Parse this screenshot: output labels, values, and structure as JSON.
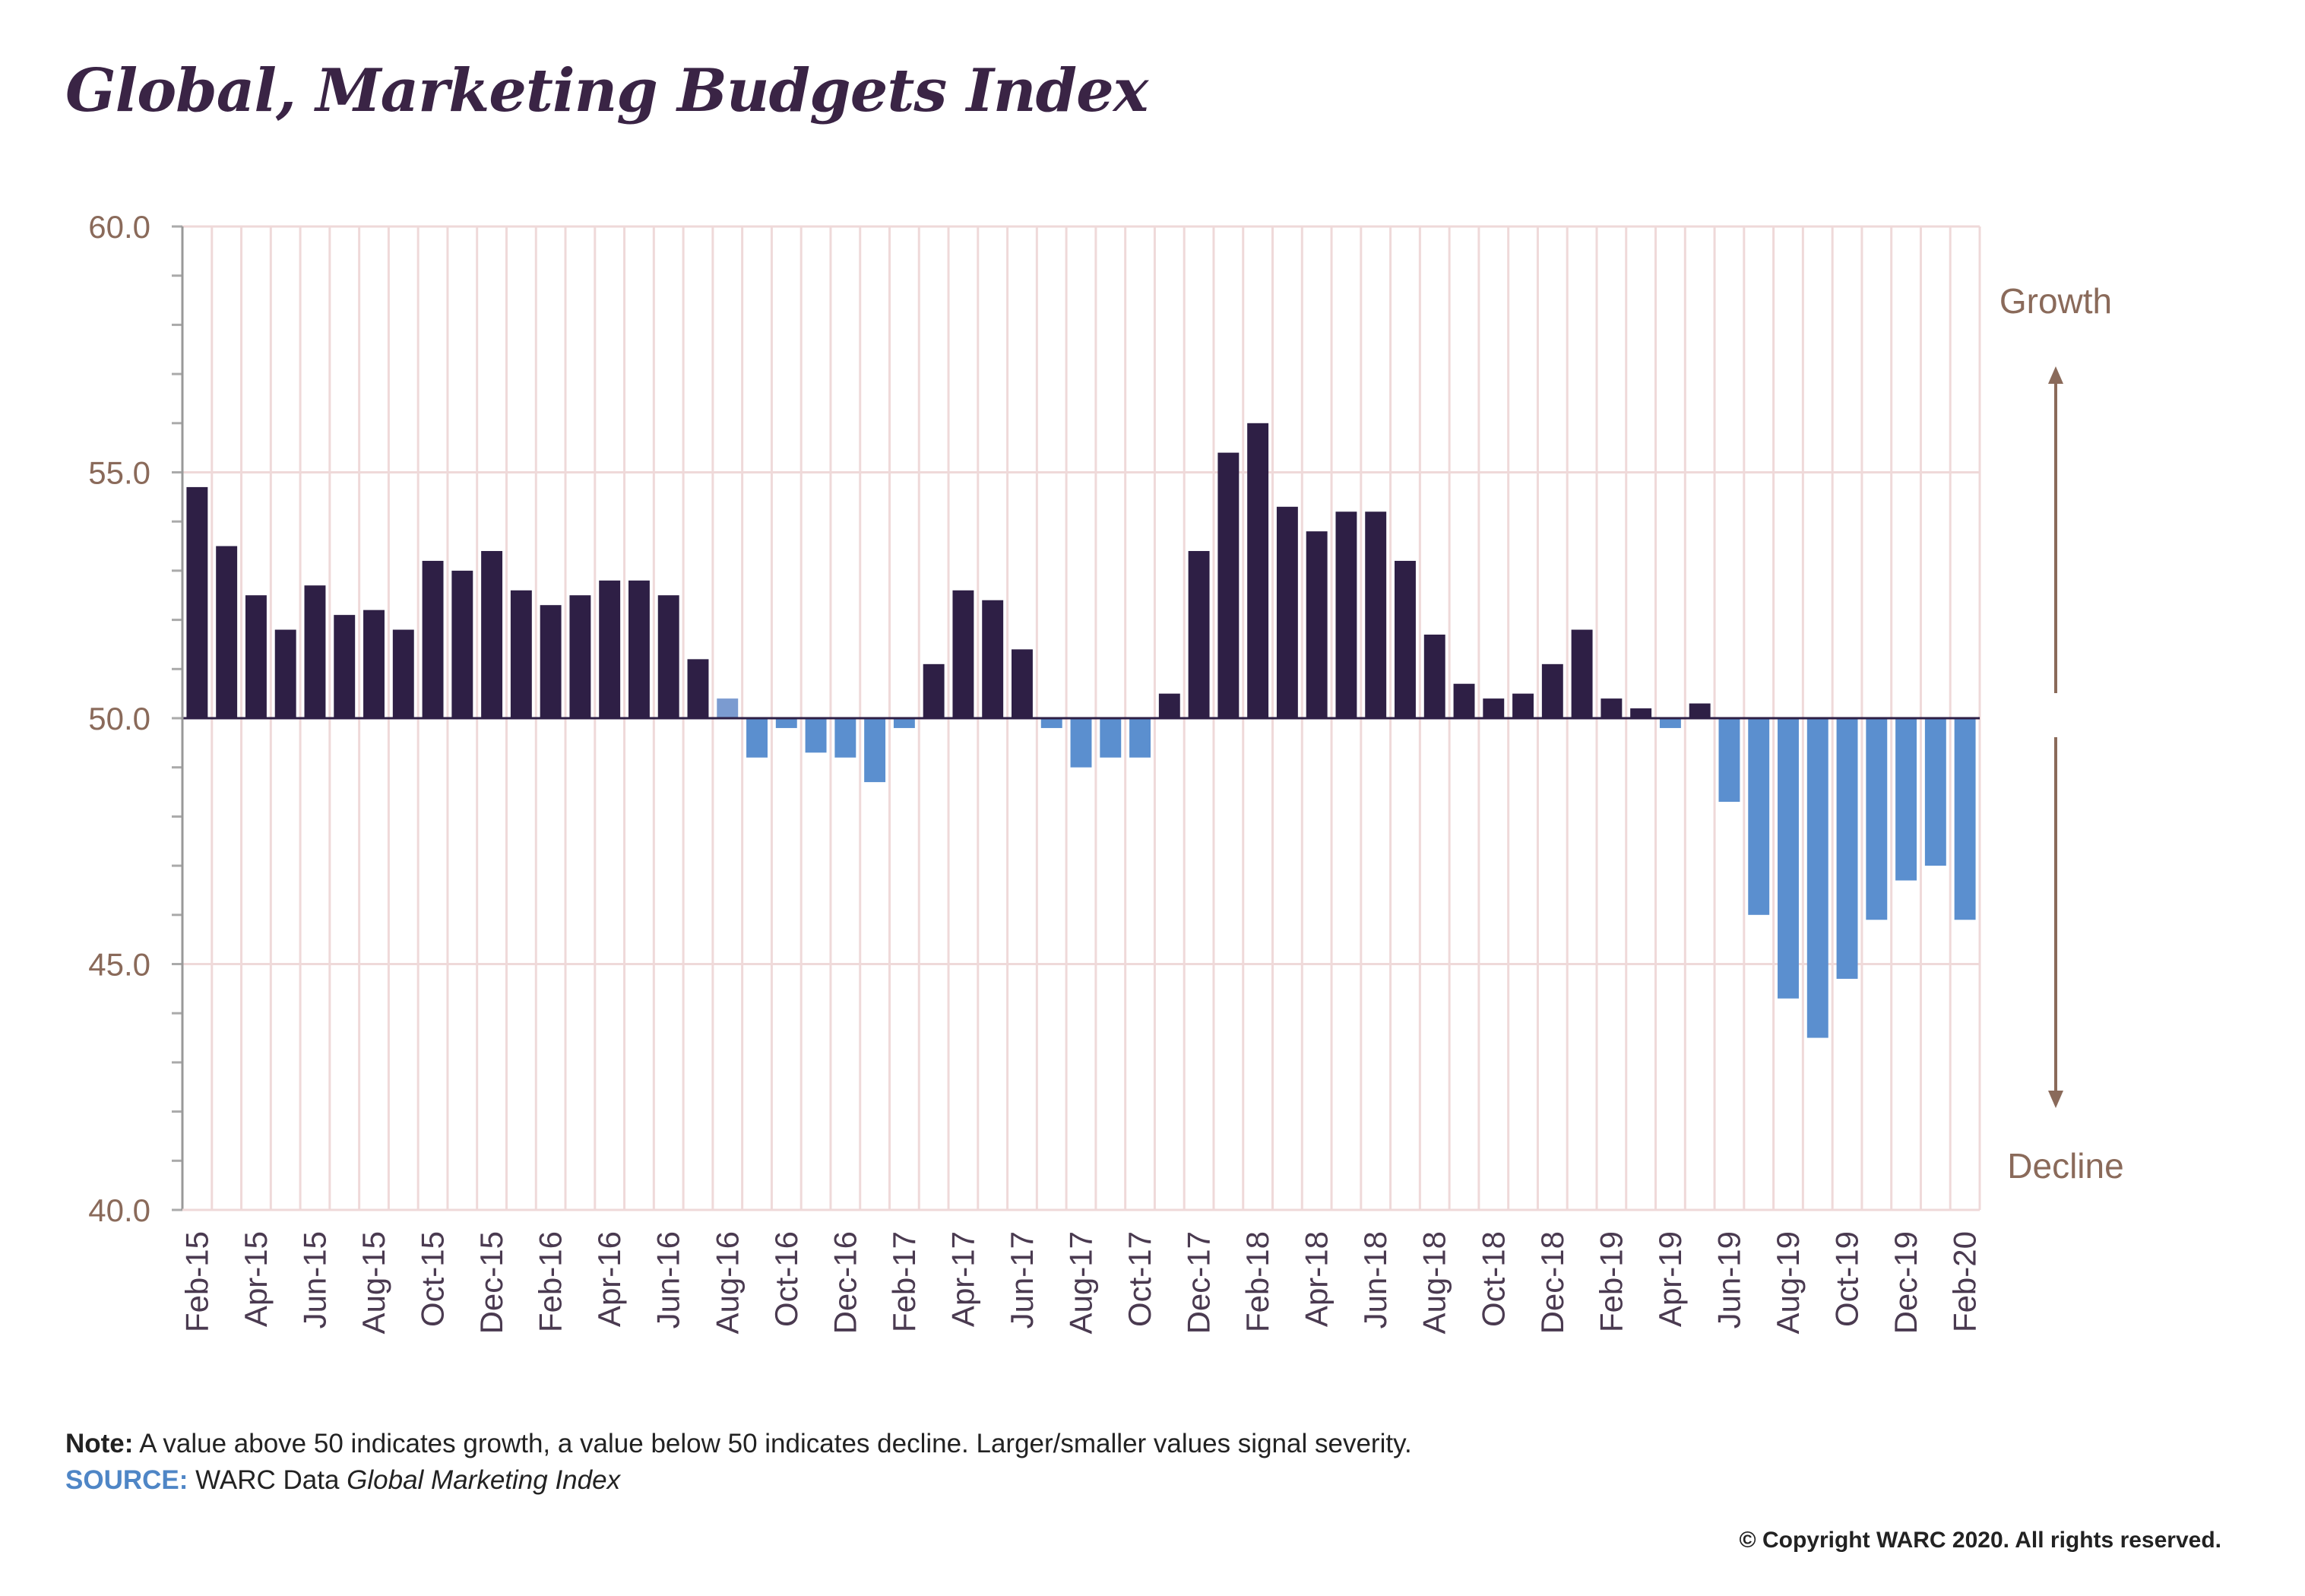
{
  "title": "Global, Marketing Budgets Index",
  "labels": {
    "growth": "Growth",
    "decline": "Decline"
  },
  "note": {
    "label": "Note:",
    "text": " A value above 50 indicates growth, a value below 50 indicates decline. Larger/smaller values signal severity.",
    "source_label": "SOURCE:",
    "source_text": " WARC Data ",
    "source_italic": "Global Marketing Index"
  },
  "copyright": "© Copyright WARC 2020. All rights reserved.",
  "colors": {
    "growth": "#2e1f45",
    "decline": "#5b8fcf",
    "neutral": "#7b9bd0",
    "grid": "#efd9d9",
    "arrow": "#8a6a5a"
  },
  "chart_data": {
    "type": "bar",
    "baseline": 50,
    "ylim": [
      40,
      60
    ],
    "yticks": [
      "40.0",
      "45.0",
      "50.0",
      "55.0",
      "60.0"
    ],
    "tick_labels": [
      "Feb-15",
      "Apr-15",
      "Jun-15",
      "Aug-15",
      "Oct-15",
      "Dec-15",
      "Feb-16",
      "Apr-16",
      "Jun-16",
      "Aug-16",
      "Oct-16",
      "Dec-16",
      "Feb-17",
      "Apr-17",
      "Jun-17",
      "Aug-17",
      "Oct-17",
      "Dec-17",
      "Feb-18",
      "Apr-18",
      "Jun-18",
      "Aug-18",
      "Oct-18",
      "Dec-18",
      "Feb-19",
      "Apr-19",
      "Jun-19",
      "Aug-19",
      "Oct-19",
      "Dec-19",
      "Feb-20"
    ],
    "categories": [
      "Feb-15",
      "Mar-15",
      "Apr-15",
      "May-15",
      "Jun-15",
      "Jul-15",
      "Aug-15",
      "Sep-15",
      "Oct-15",
      "Nov-15",
      "Dec-15",
      "Jan-16",
      "Feb-16",
      "Mar-16",
      "Apr-16",
      "May-16",
      "Jun-16",
      "Jul-16",
      "Aug-16",
      "Sep-16",
      "Oct-16",
      "Nov-16",
      "Dec-16",
      "Jan-17",
      "Feb-17",
      "Mar-17",
      "Apr-17",
      "May-17",
      "Jun-17",
      "Jul-17",
      "Aug-17",
      "Sep-17",
      "Oct-17",
      "Nov-17",
      "Dec-17",
      "Jan-18",
      "Feb-18",
      "Mar-18",
      "Apr-18",
      "May-18",
      "Jun-18",
      "Jul-18",
      "Aug-18",
      "Sep-18",
      "Oct-18",
      "Nov-18",
      "Dec-18",
      "Jan-19",
      "Feb-19",
      "Mar-19",
      "Apr-19",
      "May-19",
      "Jun-19",
      "Jul-19",
      "Aug-19",
      "Sep-19",
      "Oct-19",
      "Nov-19",
      "Dec-19",
      "Jan-20",
      "Feb-20"
    ],
    "values": [
      54.7,
      53.5,
      52.5,
      51.8,
      52.7,
      52.1,
      52.2,
      51.8,
      53.2,
      53.0,
      53.4,
      52.6,
      52.3,
      52.5,
      52.8,
      52.8,
      52.5,
      51.2,
      50.4,
      49.2,
      49.8,
      49.3,
      49.2,
      48.7,
      49.8,
      51.1,
      52.6,
      52.4,
      51.4,
      49.8,
      49.0,
      49.2,
      49.2,
      50.5,
      53.4,
      55.4,
      56.0,
      54.3,
      53.8,
      54.2,
      54.2,
      53.2,
      51.7,
      50.7,
      50.4,
      50.5,
      51.1,
      51.8,
      50.4,
      50.2,
      49.8,
      50.3,
      48.3,
      46.0,
      44.3,
      43.5,
      44.7,
      45.9,
      46.7,
      47.0,
      45.9
    ]
  }
}
